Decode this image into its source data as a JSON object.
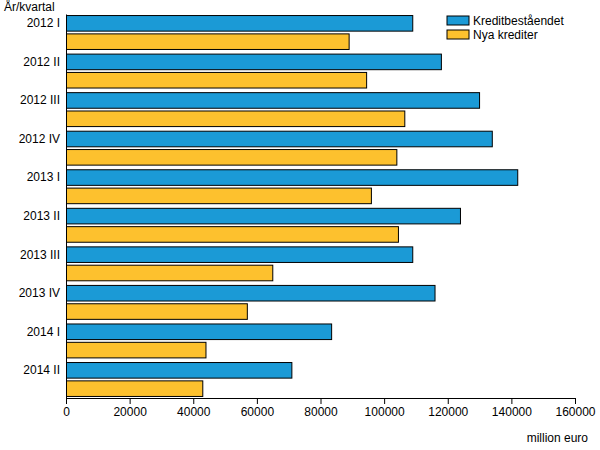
{
  "chart_data": {
    "type": "bar",
    "orientation": "horizontal",
    "y_label": "År/kvartal",
    "x_label": "million euro",
    "categories": [
      "2012 I",
      "2012 II",
      "2012 III",
      "2012 IV",
      "2013 I",
      "2013 II",
      "2013 III",
      "2013 IV",
      "2014 I",
      "2014 II"
    ],
    "series": [
      {
        "name": "Kreditbeståendet",
        "color": "#1b9ad6",
        "values": [
          109000,
          118000,
          130000,
          134000,
          142000,
          124000,
          109000,
          116000,
          83500,
          71000
        ]
      },
      {
        "name": "Nya krediter",
        "color": "#fdc12e",
        "values": [
          89000,
          94500,
          106500,
          104000,
          96000,
          104500,
          65000,
          57000,
          44000,
          43000
        ]
      }
    ],
    "xlim": [
      0,
      160000
    ],
    "xticks": [
      0,
      20000,
      40000,
      60000,
      80000,
      100000,
      120000,
      140000,
      160000
    ],
    "grid": false,
    "legend": "top-right"
  }
}
